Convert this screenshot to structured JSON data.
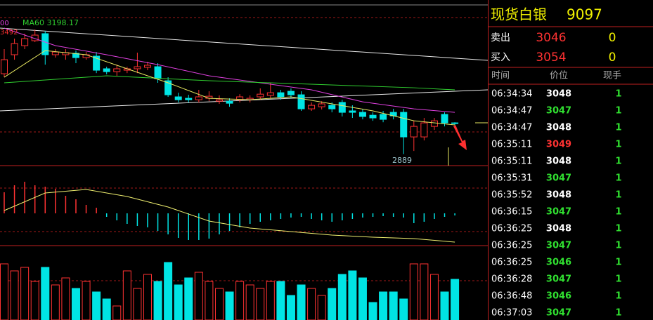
{
  "chart_data": {
    "type": "candlestick",
    "ylim": [
      2833,
      3635
    ],
    "up_color": "#ff3232",
    "down_color": "#00e4e4",
    "open": [
      3278,
      3370,
      3414,
      3438,
      3472,
      3370,
      3370,
      3377,
      3356,
      3363,
      3302,
      3288,
      3295,
      3302,
      3309,
      3312,
      3244,
      3166,
      3159,
      3152,
      3159,
      3145,
      3145,
      3152,
      3152,
      3166,
      3173,
      3186,
      3193,
      3176,
      3108,
      3118,
      3125,
      3139,
      3098,
      3091,
      3077,
      3081,
      3091,
      3091,
      2972,
      2972,
      3023,
      3081,
      3040
    ],
    "close": [
      3346,
      3424,
      3448,
      3465,
      3370,
      3383,
      3380,
      3356,
      3370,
      3295,
      3288,
      3302,
      3302,
      3312,
      3319,
      3254,
      3176,
      3152,
      3152,
      3166,
      3169,
      3152,
      3135,
      3166,
      3159,
      3179,
      3186,
      3166,
      3176,
      3108,
      3125,
      3132,
      3108,
      3091,
      3091,
      3071,
      3064,
      3057,
      3074,
      2972,
      3023,
      3040,
      3050,
      3040,
      3037
    ],
    "high": [
      3397,
      3448,
      3472,
      3492,
      3485,
      3397,
      3397,
      3390,
      3383,
      3383,
      3312,
      3322,
      3312,
      3380,
      3336,
      3329,
      3261,
      3186,
      3176,
      3200,
      3193,
      3173,
      3159,
      3179,
      3173,
      3207,
      3234,
      3200,
      3207,
      3193,
      3139,
      3145,
      3139,
      3152,
      3125,
      3108,
      3091,
      3098,
      3108,
      3108,
      3050,
      3064,
      3064,
      3091,
      3043
    ],
    "low": [
      3261,
      3346,
      3397,
      3431,
      3322,
      3356,
      3346,
      3329,
      3346,
      3281,
      3275,
      3268,
      3281,
      3281,
      3295,
      3234,
      3166,
      3139,
      3139,
      3139,
      3145,
      3132,
      3118,
      3139,
      3139,
      3152,
      3159,
      3152,
      3159,
      3098,
      3098,
      3105,
      3091,
      3071,
      3064,
      3057,
      3050,
      3043,
      3057,
      2889,
      2904,
      2955,
      3006,
      3023,
      3030
    ],
    "lines": [
      {
        "color": "#e040e0",
        "x": [
          0,
          5,
          10,
          15,
          20,
          25,
          30,
          35,
          40,
          44
        ],
        "values": [
          3499,
          3414,
          3370,
          3322,
          3268,
          3234,
          3200,
          3142,
          3108,
          3091
        ]
      },
      {
        "color": "#30d030",
        "x": [
          0,
          10,
          20,
          30,
          40,
          44
        ],
        "values": [
          3234,
          3268,
          3244,
          3227,
          3210,
          3200
        ]
      },
      {
        "color": "#e8e860",
        "x": [
          0,
          4,
          8,
          12,
          16,
          20,
          24,
          28,
          32,
          36,
          40,
          44
        ],
        "values": [
          3261,
          3390,
          3370,
          3302,
          3234,
          3159,
          3152,
          3166,
          3132,
          3098,
          3050,
          3030
        ]
      }
    ],
    "annotations": [
      {
        "text": "00",
        "color": "#e040e0"
      },
      {
        "text": "3492",
        "color": "#ff3232"
      },
      {
        "text": "MA60 3198.17",
        "color": "#30d030"
      },
      {
        "text": "2889",
        "color": "#a0c8d0"
      }
    ],
    "macd": {
      "ylim": [
        -48,
        46
      ],
      "values": [
        30,
        40,
        45,
        40,
        38,
        35,
        25,
        20,
        12,
        8,
        -5,
        -10,
        -15,
        -18,
        -20,
        -25,
        -30,
        -35,
        -38,
        -38,
        -36,
        -30,
        -25,
        -20,
        -15,
        -12,
        -10,
        -8,
        -6,
        -5,
        -8,
        -10,
        -12,
        -10,
        -8,
        -6,
        -5,
        -4,
        -5,
        -6,
        -14,
        -12,
        -8,
        -5,
        -3
      ],
      "dif": {
        "color": "#f0f070",
        "x": [
          0,
          4,
          8,
          12,
          16,
          20,
          24,
          28,
          32,
          36,
          40,
          44
        ],
        "values": [
          4,
          29,
          34,
          24,
          9,
          -11,
          -21,
          -26,
          -31,
          -34,
          -36,
          -41
        ]
      }
    },
    "volume": {
      "ylim": [
        0,
        90
      ],
      "values": [
        80,
        70,
        75,
        55,
        75,
        50,
        60,
        45,
        55,
        40,
        30,
        20,
        70,
        45,
        65,
        55,
        82,
        50,
        60,
        68,
        55,
        45,
        40,
        55,
        50,
        45,
        55,
        55,
        35,
        50,
        45,
        35,
        45,
        65,
        70,
        60,
        25,
        40,
        40,
        30,
        80,
        80,
        65,
        40,
        58
      ]
    }
  },
  "quote_panel": {
    "title": "现货白银",
    "code": "9097",
    "sell": {
      "label": "卖出",
      "price": "3046",
      "qty": "0"
    },
    "buy": {
      "label": "买入",
      "price": "3054",
      "qty": "0"
    },
    "header": [
      "时间",
      "价位",
      "现手"
    ],
    "rows": [
      {
        "time": "06:34:34",
        "price": "3048",
        "qty": "1",
        "color": "#ffffff"
      },
      {
        "time": "06:34:47",
        "price": "3047",
        "qty": "1",
        "color": "#30e030"
      },
      {
        "time": "06:34:47",
        "price": "3048",
        "qty": "1",
        "color": "#ffffff"
      },
      {
        "time": "06:35:11",
        "price": "3049",
        "qty": "1",
        "color": "#ff3232"
      },
      {
        "time": "06:35:11",
        "price": "3048",
        "qty": "1",
        "color": "#ffffff"
      },
      {
        "time": "06:35:31",
        "price": "3047",
        "qty": "1",
        "color": "#30e030"
      },
      {
        "time": "06:35:52",
        "price": "3048",
        "qty": "1",
        "color": "#ffffff"
      },
      {
        "time": "06:36:15",
        "price": "3047",
        "qty": "1",
        "color": "#30e030"
      },
      {
        "time": "06:36:25",
        "price": "3048",
        "qty": "1",
        "color": "#ffffff"
      },
      {
        "time": "06:36:25",
        "price": "3047",
        "qty": "1",
        "color": "#30e030"
      },
      {
        "time": "06:36:25",
        "price": "3046",
        "qty": "1",
        "color": "#30e030"
      },
      {
        "time": "06:36:28",
        "price": "3047",
        "qty": "1",
        "color": "#30e030"
      },
      {
        "time": "06:36:48",
        "price": "3046",
        "qty": "1",
        "color": "#30e030"
      },
      {
        "time": "06:37:03",
        "price": "3047",
        "qty": "1",
        "color": "#30e030"
      }
    ]
  }
}
